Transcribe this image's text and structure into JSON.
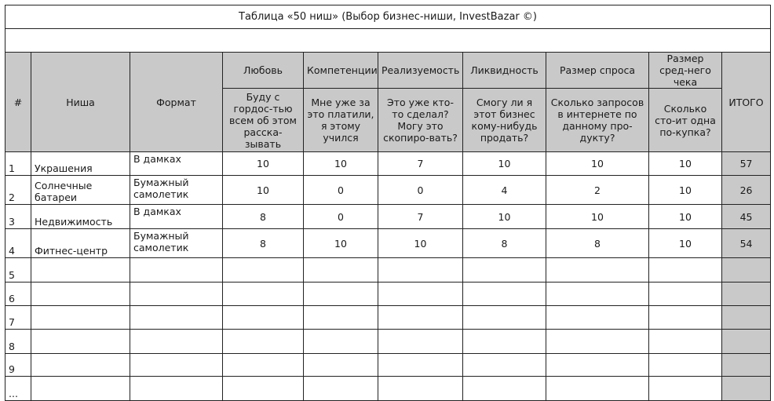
{
  "title": "Таблица «50 ниш» (Выбор бизнес-ниши, InvestBazar ©)",
  "header": {
    "num": "#",
    "niche": "Ниша",
    "format": "Формат",
    "criteria": [
      {
        "label": "Любовь",
        "question": "Буду с гордос-тью всем об этом расска-зывать"
      },
      {
        "label": "Компетенции",
        "question": "Мне уже за это платили, я этому учился"
      },
      {
        "label": "Реализуемость",
        "question": "Это уже кто-то сделал? Могу это скопиро-вать?"
      },
      {
        "label": "Ликвидность",
        "question": "Смогу ли я этот бизнес кому-нибудь продать?"
      },
      {
        "label": "Размер спроса",
        "question": "Сколько запросов в интернете по данному про-дукту?"
      },
      {
        "label": "Размер сред-него чека",
        "question": "Сколько сто-ит одна по-купка?"
      }
    ],
    "total": "ИТОГО"
  },
  "rows": [
    {
      "num": "1",
      "niche": "Украшения",
      "format": "В дамках",
      "scores": [
        "10",
        "10",
        "7",
        "10",
        "10",
        "10"
      ],
      "total": "57"
    },
    {
      "num": "2",
      "niche": "Солнечные батареи",
      "format": "Бумажный самолетик",
      "scores": [
        "10",
        "0",
        "0",
        "4",
        "2",
        "10"
      ],
      "total": "26"
    },
    {
      "num": "3",
      "niche": "Недвижимость",
      "format": "В дамках",
      "scores": [
        "8",
        "0",
        "7",
        "10",
        "10",
        "10"
      ],
      "total": "45"
    },
    {
      "num": "4",
      "niche": "Фитнес-центр",
      "format": "Бумажный самолетик",
      "scores": [
        "8",
        "10",
        "10",
        "8",
        "8",
        "10"
      ],
      "total": "54"
    },
    {
      "num": "5",
      "niche": "",
      "format": "",
      "scores": [
        "",
        "",
        "",
        "",
        "",
        ""
      ],
      "total": ""
    },
    {
      "num": "6",
      "niche": "",
      "format": "",
      "scores": [
        "",
        "",
        "",
        "",
        "",
        ""
      ],
      "total": ""
    },
    {
      "num": "7",
      "niche": "",
      "format": "",
      "scores": [
        "",
        "",
        "",
        "",
        "",
        ""
      ],
      "total": ""
    },
    {
      "num": "8",
      "niche": "",
      "format": "",
      "scores": [
        "",
        "",
        "",
        "",
        "",
        ""
      ],
      "total": ""
    },
    {
      "num": "9",
      "niche": "",
      "format": "",
      "scores": [
        "",
        "",
        "",
        "",
        "",
        ""
      ],
      "total": ""
    },
    {
      "num": "...",
      "niche": "",
      "format": "",
      "scores": [
        "",
        "",
        "",
        "",
        "",
        ""
      ],
      "total": ""
    }
  ],
  "colors": {
    "header_bg": "#c9c9c9",
    "border": "#222222"
  }
}
